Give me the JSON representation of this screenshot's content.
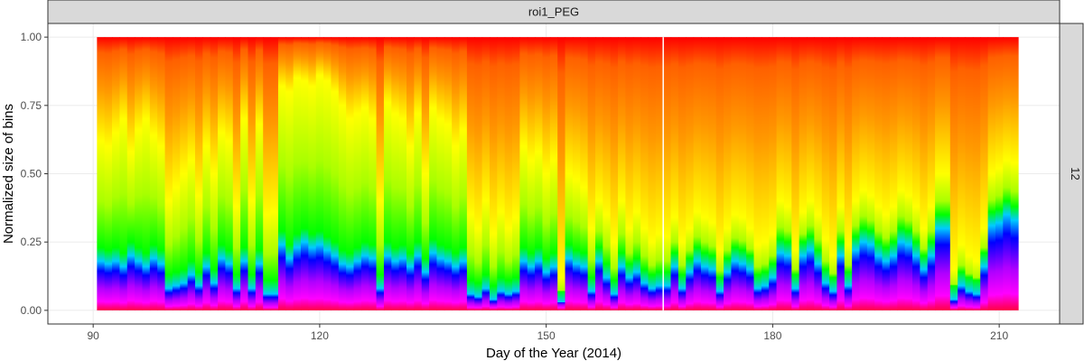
{
  "chart_data": {
    "type": "heatmap",
    "facet_top_label": "roi1_PEG",
    "facet_right_label": "12",
    "xlabel": "Day of the Year (2014)",
    "ylabel": "Normalized size of bins",
    "xlim": [
      84,
      218
    ],
    "ylim": [
      -0.05,
      1.05
    ],
    "x_ticks": [
      90,
      120,
      150,
      180,
      210
    ],
    "x_tick_labels": [
      "90",
      "120",
      "150",
      "180",
      "210"
    ],
    "y_ticks": [
      0,
      0.25,
      0.5,
      0.75,
      1.0
    ],
    "y_tick_labels": [
      "0.00",
      "0.25",
      "0.50",
      "0.75",
      "1.00"
    ],
    "grid": true,
    "colors": {
      "panel_bg": "#ffffff",
      "strip_bg": "#d9d9d9",
      "border": "#333333",
      "grid": "#ebebeb",
      "gap_line": "#ffffff"
    },
    "gap_day": 165.5,
    "color_scale": "rainbow: magenta at bottom, through blue, cyan, green, yellow, orange to red at top",
    "days": [
      91,
      92,
      93,
      94,
      95,
      96,
      97,
      98,
      99,
      100,
      101,
      102,
      103,
      104,
      105,
      106,
      107,
      108,
      109,
      110,
      111,
      112,
      113,
      114,
      115,
      116,
      117,
      118,
      119,
      120,
      121,
      122,
      123,
      124,
      125,
      126,
      127,
      128,
      129,
      130,
      131,
      132,
      133,
      134,
      135,
      136,
      137,
      138,
      139,
      140,
      141,
      142,
      143,
      144,
      145,
      146,
      147,
      148,
      149,
      150,
      151,
      152,
      153,
      154,
      155,
      156,
      157,
      158,
      159,
      160,
      161,
      162,
      163,
      164,
      165,
      166,
      167,
      168,
      169,
      170,
      171,
      172,
      173,
      174,
      175,
      176,
      177,
      178,
      179,
      180,
      181,
      182,
      183,
      184,
      185,
      186,
      187,
      188,
      189,
      190,
      191,
      192,
      193,
      194,
      195,
      196,
      197,
      198,
      199,
      200,
      201,
      202,
      203,
      204,
      205,
      206,
      207,
      208,
      209,
      210,
      211,
      212
    ],
    "blue_band_level": [
      0.18,
      0.17,
      0.18,
      0.16,
      0.2,
      0.18,
      0.16,
      0.19,
      0.17,
      0.08,
      0.09,
      0.1,
      0.13,
      0.09,
      0.16,
      0.1,
      0.19,
      0.17,
      0.08,
      0.18,
      0.08,
      0.17,
      0.06,
      0.06,
      0.24,
      0.19,
      0.23,
      0.25,
      0.23,
      0.24,
      0.22,
      0.2,
      0.17,
      0.16,
      0.18,
      0.2,
      0.19,
      0.08,
      0.2,
      0.18,
      0.19,
      0.16,
      0.2,
      0.14,
      0.21,
      0.19,
      0.18,
      0.16,
      0.18,
      0.06,
      0.05,
      0.08,
      0.04,
      0.07,
      0.06,
      0.07,
      0.18,
      0.16,
      0.18,
      0.14,
      0.16,
      0.02,
      0.19,
      0.17,
      0.16,
      0.07,
      0.18,
      0.12,
      0.06,
      0.16,
      0.12,
      0.14,
      0.1,
      0.08,
      0.09,
      0.09,
      0.16,
      0.08,
      0.14,
      0.18,
      0.16,
      0.15,
      0.07,
      0.14,
      0.18,
      0.17,
      0.15,
      0.08,
      0.09,
      0.12,
      0.21,
      0.2,
      0.08,
      0.2,
      0.22,
      0.17,
      0.1,
      0.07,
      0.2,
      0.09,
      0.22,
      0.25,
      0.24,
      0.2,
      0.18,
      0.2,
      0.25,
      0.24,
      0.2,
      0.15,
      0.2,
      0.3,
      0.3,
      0.04,
      0.09,
      0.07,
      0.06,
      0.16,
      0.31,
      0.32,
      0.35,
      0.33
    ],
    "yellow_band_level": [
      0.62,
      0.6,
      0.65,
      0.7,
      0.58,
      0.66,
      0.7,
      0.64,
      0.6,
      0.4,
      0.45,
      0.5,
      0.55,
      0.42,
      0.6,
      0.5,
      0.65,
      0.62,
      0.38,
      0.7,
      0.4,
      0.68,
      0.35,
      0.36,
      0.82,
      0.8,
      0.85,
      0.84,
      0.82,
      0.86,
      0.84,
      0.8,
      0.75,
      0.7,
      0.72,
      0.74,
      0.7,
      0.4,
      0.76,
      0.72,
      0.7,
      0.6,
      0.72,
      0.5,
      0.74,
      0.7,
      0.68,
      0.6,
      0.66,
      0.35,
      0.3,
      0.4,
      0.28,
      0.36,
      0.3,
      0.34,
      0.6,
      0.55,
      0.58,
      0.5,
      0.55,
      0.12,
      0.5,
      0.48,
      0.45,
      0.3,
      0.4,
      0.35,
      0.25,
      0.4,
      0.3,
      0.36,
      0.3,
      0.25,
      0.28,
      0.27,
      0.34,
      0.25,
      0.3,
      0.36,
      0.34,
      0.32,
      0.22,
      0.3,
      0.35,
      0.34,
      0.3,
      0.24,
      0.25,
      0.28,
      0.4,
      0.38,
      0.22,
      0.36,
      0.4,
      0.35,
      0.26,
      0.2,
      0.38,
      0.24,
      0.4,
      0.44,
      0.42,
      0.38,
      0.35,
      0.38,
      0.44,
      0.42,
      0.38,
      0.3,
      0.38,
      0.5,
      0.5,
      0.15,
      0.24,
      0.2,
      0.18,
      0.3,
      0.5,
      0.52,
      0.55,
      0.54
    ]
  }
}
